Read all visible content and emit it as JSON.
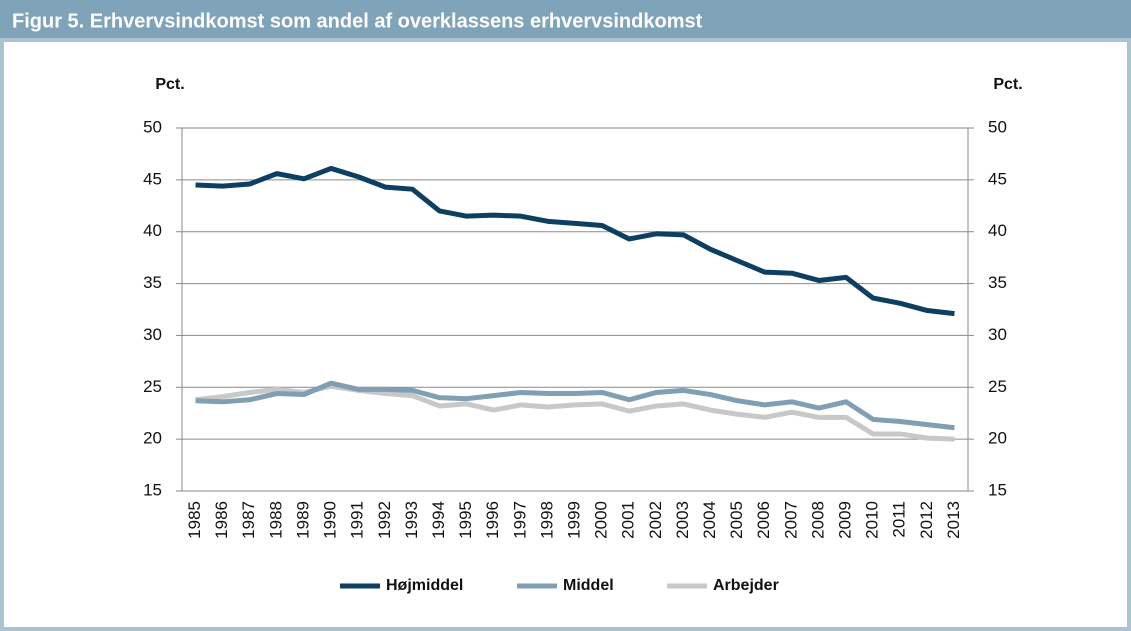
{
  "chart_data": {
    "type": "line",
    "title": "Figur 5. Erhvervsindkomst som andel af overklassens erhvervsindkomst",
    "y_label": "Pct.",
    "y2_label": "Pct.",
    "categories": [
      "1985",
      "1986",
      "1987",
      "1988",
      "1989",
      "1990",
      "1991",
      "1992",
      "1993",
      "1994",
      "1995",
      "1996",
      "1997",
      "1998",
      "1999",
      "2000",
      "2001",
      "2002",
      "2003",
      "2004",
      "2005",
      "2006",
      "2007",
      "2008",
      "2009",
      "2010",
      "2011",
      "2012",
      "2013"
    ],
    "series": [
      {
        "name": "Højmiddel",
        "color": "#0d3f62",
        "values": [
          44.5,
          44.4,
          44.6,
          45.6,
          45.1,
          46.1,
          45.3,
          44.3,
          44.1,
          42.0,
          41.5,
          41.6,
          41.5,
          41.0,
          40.8,
          40.6,
          39.3,
          39.8,
          39.7,
          38.3,
          37.2,
          36.1,
          36.0,
          35.3,
          35.6,
          33.6,
          33.1,
          32.4,
          32.1
        ]
      },
      {
        "name": "Middel",
        "color": "#809fb4",
        "values": [
          23.7,
          23.6,
          23.8,
          24.4,
          24.3,
          25.4,
          24.8,
          24.8,
          24.7,
          24.0,
          23.9,
          24.2,
          24.5,
          24.4,
          24.4,
          24.5,
          23.8,
          24.5,
          24.7,
          24.3,
          23.7,
          23.3,
          23.6,
          23.0,
          23.6,
          21.9,
          21.7,
          21.4,
          21.1
        ]
      },
      {
        "name": "Arbejder",
        "color": "#c8c8c8",
        "values": [
          23.8,
          24.1,
          24.5,
          24.8,
          24.5,
          25.1,
          24.7,
          24.4,
          24.2,
          23.2,
          23.4,
          22.8,
          23.3,
          23.1,
          23.3,
          23.4,
          22.7,
          23.2,
          23.4,
          22.8,
          22.4,
          22.1,
          22.6,
          22.1,
          22.1,
          20.5,
          20.5,
          20.1,
          20.0
        ]
      }
    ],
    "ylim": [
      15,
      50
    ],
    "yticks": [
      15,
      20,
      25,
      30,
      35,
      40,
      45,
      50
    ],
    "y2lim": [
      15,
      50
    ],
    "y2ticks": [
      15,
      20,
      25,
      30,
      35,
      40,
      45,
      50
    ],
    "grid": true,
    "legend": "bottom"
  }
}
